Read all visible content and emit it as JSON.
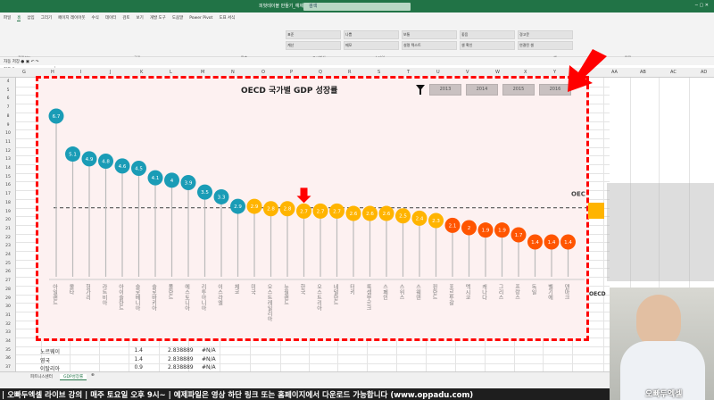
{
  "window": {
    "title": "피벗테이블 만들기_예제",
    "search_placeholder": "검색",
    "controls": "─  ▢  ✕"
  },
  "ribbon": {
    "tabs": [
      "파일",
      "홈",
      "삽입",
      "그리기",
      "페이지 레이아웃",
      "수식",
      "데이터",
      "검토",
      "보기",
      "개발 도구",
      "도움말",
      "Power Pivot",
      "도표 서식"
    ],
    "selected_tab": "홈",
    "groups": [
      "클립보드",
      "글꼴",
      "맞춤",
      "표시형식",
      "스타일",
      "셀",
      "편집"
    ],
    "styles": [
      "표준",
      "나쁨",
      "보통",
      "좋음",
      "경고문",
      "계산",
      "메모",
      "설명 텍스트",
      "셀 확인",
      "연결된 셀"
    ]
  },
  "namebox": "차트 3",
  "columns": [
    "G",
    "H",
    "I",
    "J",
    "K",
    "L",
    "M",
    "N",
    "O",
    "P",
    "Q",
    "R",
    "S",
    "T",
    "U",
    "V",
    "W",
    "X",
    "Y",
    "Z",
    "AA",
    "AB",
    "AC",
    "AD"
  ],
  "rows": [
    4,
    5,
    6,
    7,
    8,
    9,
    10,
    11,
    12,
    13,
    14,
    15,
    16,
    17,
    18,
    19,
    20,
    21,
    22,
    23,
    24,
    25,
    26,
    27,
    28,
    29,
    30,
    31,
    32,
    33,
    34,
    35,
    36,
    37
  ],
  "table_rows": [
    {
      "country": "노르웨이",
      "value": "1.4",
      "avg": "2.838889",
      "na": "#N/A"
    },
    {
      "country": "영국",
      "value": "1.4",
      "avg": "2.838889",
      "na": "#N/A"
    },
    {
      "country": "이탈리아",
      "value": "0.9",
      "avg": "2.838889",
      "na": "#N/A"
    }
  ],
  "slicer": {
    "icon": "filter-icon",
    "items": [
      "2013",
      "2014",
      "2015",
      "2016"
    ]
  },
  "chart_data": {
    "type": "lollipop",
    "title": "OECD 국가별 GDP 성장률",
    "categories": [
      "아일랜드",
      "몰타",
      "헝가리",
      "라트비아",
      "아이슬란드",
      "슬로베니아",
      "슬로바키아",
      "폴란드",
      "에스토니아",
      "리투아니아",
      "이스라엘",
      "체코",
      "미국",
      "오스트레일리아",
      "뉴질랜드",
      "한국",
      "오스트리아",
      "네덜란드",
      "터키",
      "룩셈부르크",
      "스페인",
      "스위스",
      "스웨덴",
      "핀란드",
      "포르투갈",
      "멕시코",
      "캐나다",
      "그리스",
      "프랑스",
      "독일",
      "벨기에",
      "덴마크"
    ],
    "values": [
      6.7,
      5.1,
      4.9,
      4.8,
      4.6,
      4.5,
      4.1,
      4,
      3.9,
      3.5,
      3.3,
      2.9,
      2.9,
      2.8,
      2.8,
      2.7,
      2.7,
      2.7,
      2.6,
      2.6,
      2.6,
      2.5,
      2.4,
      2.3,
      2.1,
      2,
      1.9,
      1.9,
      1.7,
      1.4,
      1.4,
      1.4
    ],
    "groups": [
      12,
      12,
      8
    ],
    "group_colors": [
      "#1a9cb6",
      "#ffb400",
      "#ff5500"
    ],
    "average": {
      "label": "OEC",
      "value": 2.838889
    },
    "highlight_category": "한국",
    "ylim": [
      1.4,
      6.7
    ]
  },
  "sheet_tabs": [
    "피트니스센터",
    "GDP성장률"
  ],
  "active_sheet": "GDP성장률",
  "banner": "| 오빠두엑셀 라이브 강의 | 매주 토요일 오후 9시~ | 예제파일은 영상 하단 링크 또는 홈페이지에서 다운로드 가능합니다 (www.oppadu.com)",
  "webcam_logo": "오빠두엑셀",
  "right_chart_label": "OECD"
}
